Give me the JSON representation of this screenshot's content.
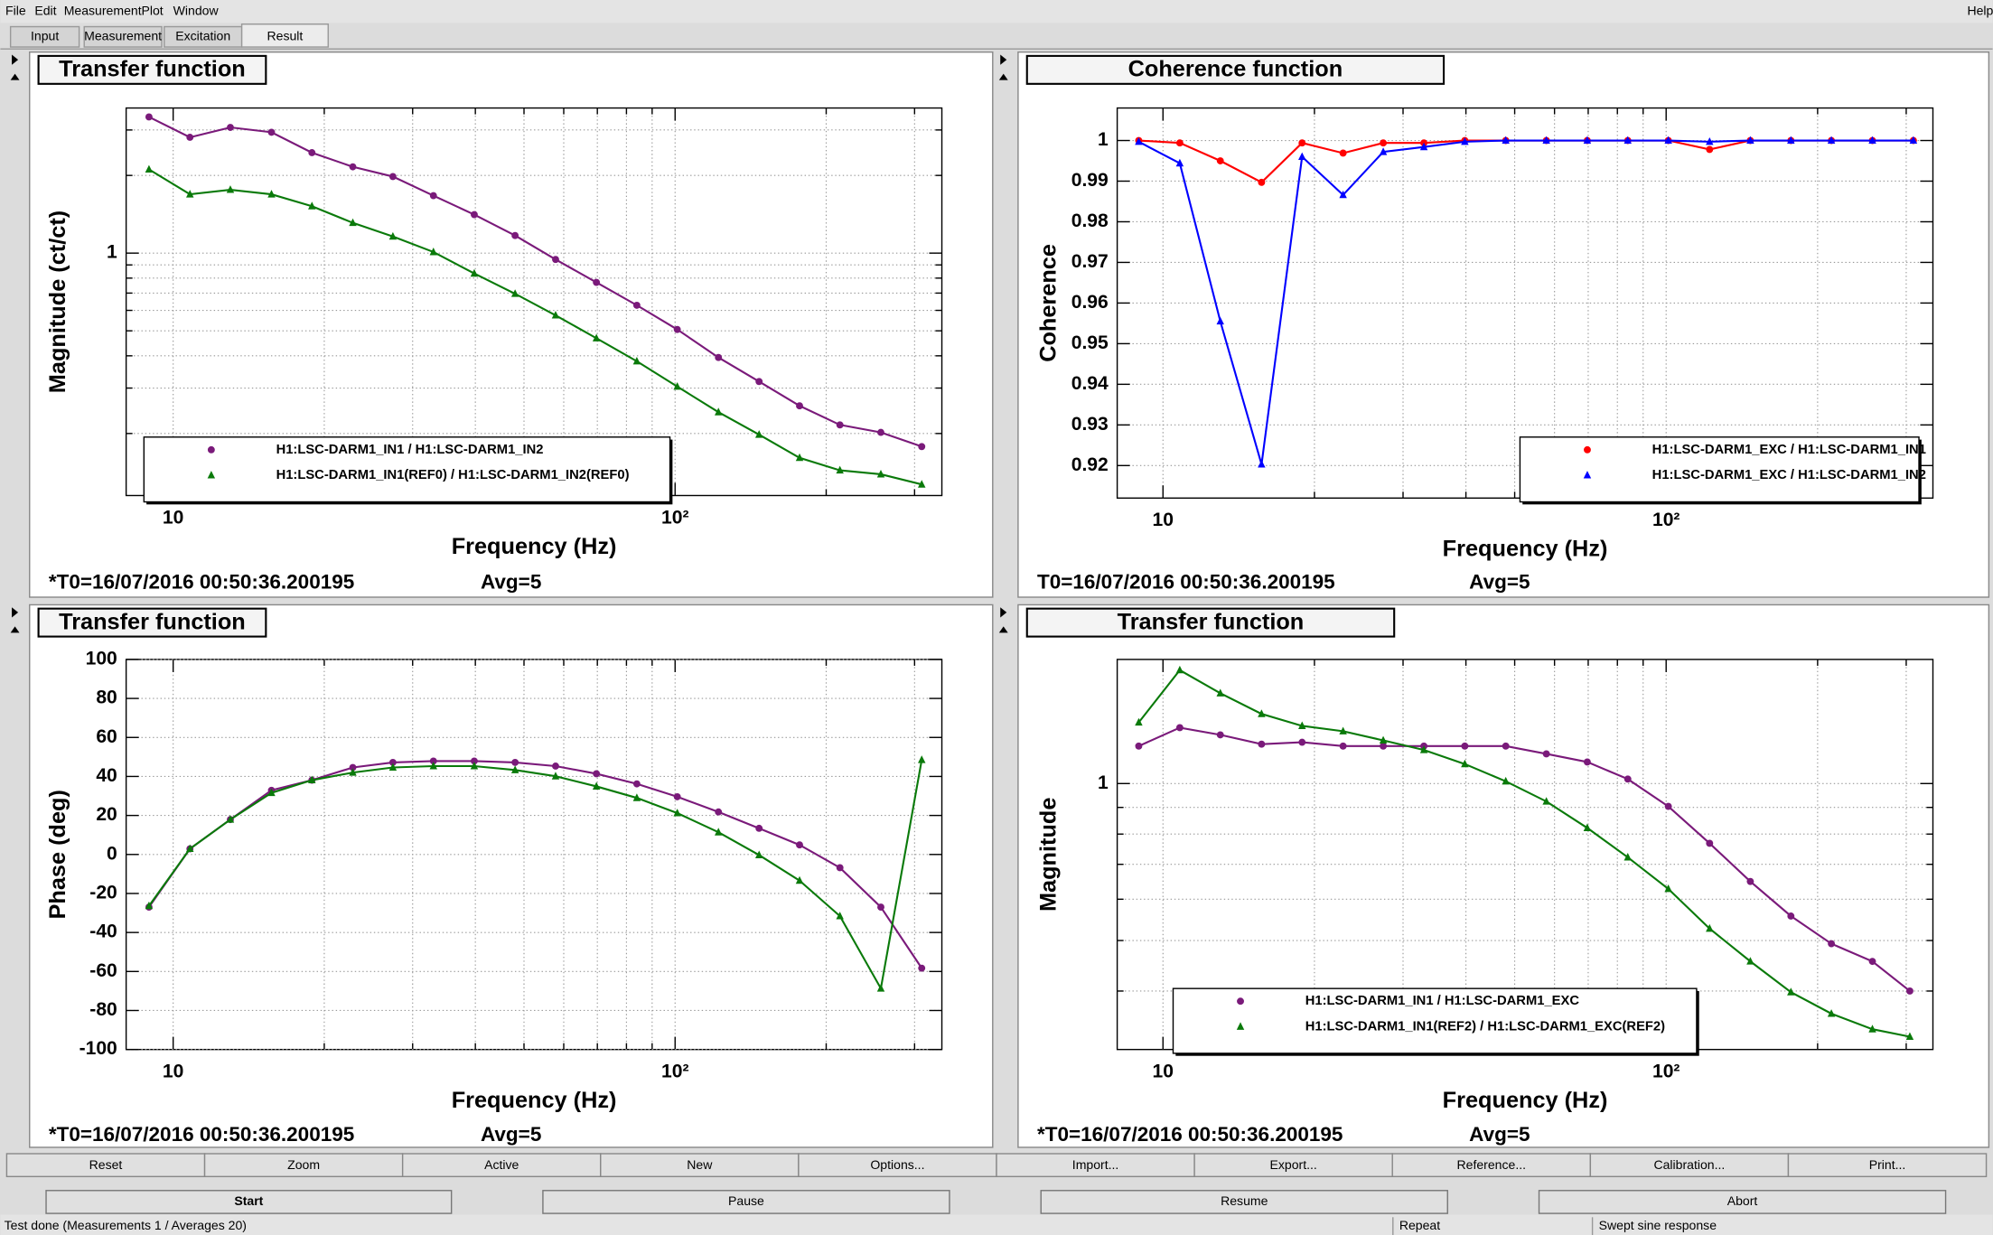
{
  "menu": [
    "File",
    "Edit",
    "Measurement",
    "Plot",
    "Window"
  ],
  "help": "Help",
  "tabs": [
    "Input",
    "Measurement",
    "Excitation",
    "Result"
  ],
  "chart_data": [
    {
      "type": "line",
      "title": "Transfer function",
      "xlabel": "Frequency (Hz)",
      "ylabel": "Magnitude (ct/ct)",
      "x": [
        8.95,
        10.8,
        13.0,
        15.7,
        18.9,
        22.8,
        27.4,
        33.0,
        39.8,
        48.0,
        57.8,
        69.7,
        83.9,
        101,
        122,
        147,
        177,
        213,
        257,
        310
      ],
      "series": [
        {
          "name": "H1:LSC-DARM1_IN1 / H1:LSC-DARM1_IN2",
          "color": "#7a1a7a",
          "marker": "circle",
          "values": [
            3.37,
            2.81,
            3.07,
            2.94,
            2.45,
            2.16,
            1.98,
            1.67,
            1.41,
            1.17,
            0.945,
            0.77,
            0.628,
            0.506,
            0.394,
            0.318,
            0.256,
            0.216,
            0.202,
            0.178
          ]
        },
        {
          "name": "H1:LSC-DARM1_IN1(REF0) / H1:LSC-DARM1_IN2(REF0)",
          "color": "#0a7a0a",
          "marker": "triangle",
          "values": [
            2.11,
            1.69,
            1.76,
            1.69,
            1.52,
            1.31,
            1.16,
            1.01,
            0.834,
            0.696,
            0.574,
            0.468,
            0.381,
            0.304,
            0.242,
            0.198,
            0.161,
            0.144,
            0.139,
            0.127
          ]
        }
      ],
      "xlim": [
        8.06,
        340
      ],
      "xlog": true,
      "xticks": [
        10,
        {
          "value": 100,
          "label": "10²"
        }
      ],
      "xminor": [
        20,
        30,
        40,
        50,
        60,
        70,
        80,
        90,
        200,
        300
      ],
      "ylim": [
        0.115,
        3.65
      ],
      "ylog": true,
      "yticks": [
        1
      ],
      "yminor": [
        0.2,
        0.3,
        0.4,
        0.5,
        0.6,
        0.7,
        0.8,
        0.9,
        2,
        3
      ],
      "grid": true,
      "legend": "lower left",
      "annotations": [
        "*T0=16/07/2016 00:50:36.200195",
        "Avg=5"
      ],
      "annotation_color": "#6a0a6a"
    },
    {
      "type": "line",
      "title": "Coherence function",
      "xlabel": "Frequency (Hz)",
      "ylabel": "Coherence",
      "x": [
        8.95,
        10.8,
        13.0,
        15.7,
        18.9,
        22.8,
        27.4,
        33.0,
        39.8,
        48.0,
        57.8,
        69.7,
        83.9,
        101,
        122,
        147,
        177,
        213,
        257,
        310
      ],
      "series": [
        {
          "name": "H1:LSC-DARM1_EXC / H1:LSC-DARM1_IN1",
          "color": "#ff0000",
          "marker": "circle",
          "values": [
            1,
            0.9994,
            0.995,
            0.9897,
            0.9994,
            0.9969,
            0.9994,
            0.9994,
            1,
            1,
            1,
            1,
            1,
            1,
            0.9978,
            1,
            1,
            1,
            1,
            1
          ]
        },
        {
          "name": "H1:LSC-DARM1_EXC / H1:LSC-DARM1_IN2",
          "color": "#0000ff",
          "marker": "triangle",
          "values": [
            0.9997,
            0.9944,
            0.9555,
            0.9203,
            0.996,
            0.9866,
            0.9972,
            0.9984,
            0.9997,
            1,
            1,
            1,
            1,
            1,
            0.9997,
            1,
            1,
            1,
            1,
            1
          ]
        }
      ],
      "xlim": [
        8.11,
        339
      ],
      "xlog": true,
      "xticks": [
        10,
        {
          "value": 100,
          "label": "10²"
        }
      ],
      "xminor": [
        20,
        30,
        40,
        50,
        60,
        70,
        80,
        90,
        200,
        300
      ],
      "ylim": [
        0.912,
        1.008
      ],
      "ylog": false,
      "yticks": [
        0.92,
        0.93,
        0.94,
        0.95,
        0.96,
        0.97,
        0.98,
        0.99,
        1
      ],
      "yminor": [],
      "grid": true,
      "legend": "lower right",
      "annotations": [
        "T0=16/07/2016 00:50:36.200195",
        "Avg=5"
      ],
      "annotation_color": "#000000"
    },
    {
      "type": "line",
      "title": "Transfer function",
      "xlabel": "Frequency (Hz)",
      "ylabel": "Phase (deg)",
      "x": [
        8.95,
        10.8,
        13.0,
        15.7,
        18.9,
        22.8,
        27.4,
        33.0,
        39.8,
        48.0,
        57.8,
        69.7,
        83.9,
        101,
        122,
        147,
        177,
        213,
        257,
        310
      ],
      "series": [
        {
          "color": "#7a1a7a",
          "marker": "circle",
          "values": [
            -27.0,
            2.9,
            17.9,
            32.9,
            38.1,
            44.6,
            47.2,
            47.9,
            47.9,
            47.2,
            45.3,
            41.4,
            36.2,
            29.6,
            21.8,
            13.4,
            4.9,
            -6.8,
            -27.0,
            -58.3
          ]
        },
        {
          "color": "#0a7a0a",
          "marker": "triangle",
          "values": [
            -26.4,
            2.9,
            17.9,
            31.6,
            38.1,
            42.0,
            44.6,
            45.3,
            45.3,
            43.3,
            40.1,
            34.9,
            29.0,
            21.2,
            11.4,
            -0.3,
            -13.4,
            -31.6,
            -68.7,
            48.5
          ]
        }
      ],
      "xlim": [
        8.06,
        340
      ],
      "xlog": true,
      "xticks": [
        10,
        {
          "value": 100,
          "label": "10²"
        }
      ],
      "xminor": [
        20,
        30,
        40,
        50,
        60,
        70,
        80,
        90,
        200,
        300
      ],
      "ylim": [
        -100,
        100
      ],
      "ylog": false,
      "yticks": [
        -100,
        -80,
        -60,
        -40,
        -20,
        0,
        20,
        40,
        60,
        80,
        100
      ],
      "yminor": [],
      "grid": true,
      "annotations": [
        "*T0=16/07/2016 00:50:36.200195",
        "Avg=5"
      ],
      "annotation_color": "#6a0a6a"
    },
    {
      "type": "line",
      "title": "Transfer function",
      "xlabel": "Frequency (Hz)",
      "ylabel": "Magnitude",
      "x": [
        8.95,
        10.8,
        13.0,
        15.7,
        18.9,
        22.8,
        27.4,
        33.0,
        39.8,
        48.0,
        57.8,
        69.7,
        83.9,
        101,
        122,
        147,
        177,
        213,
        257,
        305
      ],
      "series": [
        {
          "name": "H1:LSC-DARM1_IN1 / H1:LSC-DARM1_EXC",
          "color": "#7a1a7a",
          "marker": "circle",
          "values": [
            1.18,
            1.28,
            1.24,
            1.19,
            1.2,
            1.18,
            1.18,
            1.18,
            1.18,
            1.18,
            1.14,
            1.1,
            1.02,
            0.904,
            0.768,
            0.649,
            0.557,
            0.493,
            0.456,
            0.4
          ]
        },
        {
          "name": "H1:LSC-DARM1_IN1(REF2) / H1:LSC-DARM1_EXC(REF2)",
          "color": "#0a7a0a",
          "marker": "triangle",
          "values": [
            1.31,
            1.65,
            1.49,
            1.36,
            1.29,
            1.26,
            1.21,
            1.16,
            1.09,
            1.01,
            0.924,
            0.822,
            0.722,
            0.628,
            0.527,
            0.456,
            0.398,
            0.362,
            0.338,
            0.327
          ]
        }
      ],
      "xlim": [
        8.11,
        339
      ],
      "xlog": true,
      "xticks": [
        10,
        {
          "value": 100,
          "label": "10²"
        }
      ],
      "xminor": [
        20,
        30,
        40,
        50,
        60,
        70,
        80,
        90,
        200,
        300
      ],
      "ylim": [
        0.309,
        1.73
      ],
      "ylog": true,
      "yticks": [
        1
      ],
      "yminor": [
        0.4,
        0.5,
        0.6,
        0.7,
        0.8,
        0.9
      ],
      "grid": true,
      "legend": "lower left",
      "annotations": [
        "*T0=16/07/2016 00:50:36.200195",
        "Avg=5"
      ],
      "annotation_color": "#6a0a6a"
    }
  ],
  "buttons": [
    "Reset",
    "Zoom",
    "Active",
    "New",
    "Options...",
    "Import...",
    "Export...",
    "Reference...",
    "Calibration...",
    "Print..."
  ],
  "controls": [
    {
      "label": "Start",
      "enabled": true
    },
    {
      "label": "Pause",
      "enabled": false
    },
    {
      "label": "Resume",
      "enabled": false
    },
    {
      "label": "Abort",
      "enabled": false
    }
  ],
  "status": [
    "Test done (Measurements 1 / Averages 20)",
    "Repeat",
    "Swept sine response"
  ]
}
